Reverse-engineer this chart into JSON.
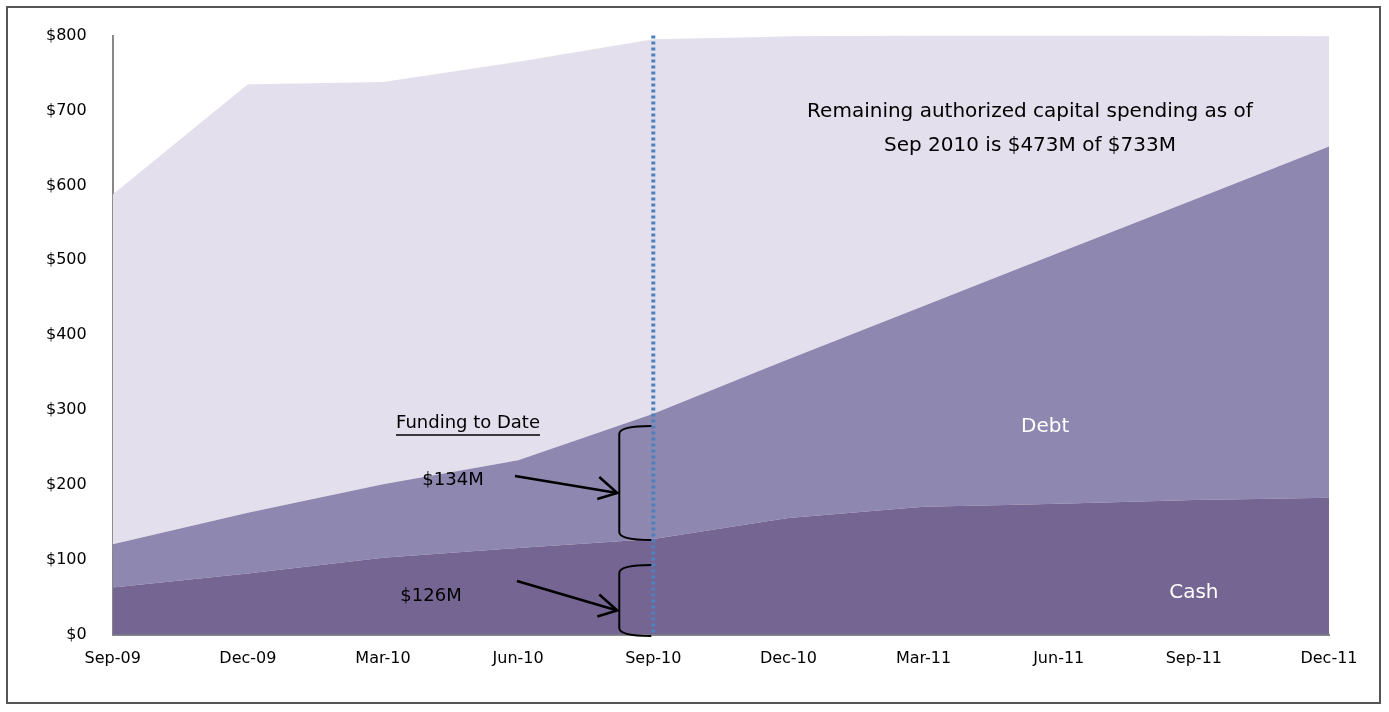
{
  "chart_data": {
    "type": "area",
    "stacked": true,
    "categories": [
      "Sep-09",
      "Dec-09",
      "Mar-10",
      "Jun-10",
      "Sep-10",
      "Dec-10",
      "Mar-11",
      "Jun-11",
      "Sep-11",
      "Dec-11"
    ],
    "series": [
      {
        "name": "Cash",
        "color": "#756592",
        "values": [
          63,
          82,
          103,
          116,
          128,
          156,
          171,
          175,
          180,
          183
        ]
      },
      {
        "name": "Debt",
        "color": "#8e87b0",
        "values": [
          58,
          81,
          98,
          117,
          167,
          212,
          268,
          335,
          401,
          469
        ]
      },
      {
        "color": "#e4dfec",
        "values": [
          467,
          572,
          537,
          532,
          500,
          431,
          361,
          290,
          219,
          147
        ]
      }
    ],
    "ylim": [
      0,
      800
    ],
    "yticks": [
      {
        "value": 0,
        "label": "$0"
      },
      {
        "value": 100,
        "label": "$100"
      },
      {
        "value": 200,
        "label": "$200"
      },
      {
        "value": 300,
        "label": "$300"
      },
      {
        "value": 400,
        "label": "$400"
      },
      {
        "value": 500,
        "label": "$500"
      },
      {
        "value": 600,
        "label": "$600"
      },
      {
        "value": 700,
        "label": "$700"
      },
      {
        "value": 800,
        "label": "$800"
      }
    ],
    "ref_lines": [
      {
        "axis": "x",
        "value": "Sep-10",
        "color": "#4f81bd",
        "line_style": "dotted"
      }
    ],
    "annotations": [
      "Remaining authorized capital spending as of Sep 2010 is $473M of $733M",
      "Funding to Date",
      "$134M",
      "$126M"
    ],
    "grid": false,
    "legend": false
  }
}
